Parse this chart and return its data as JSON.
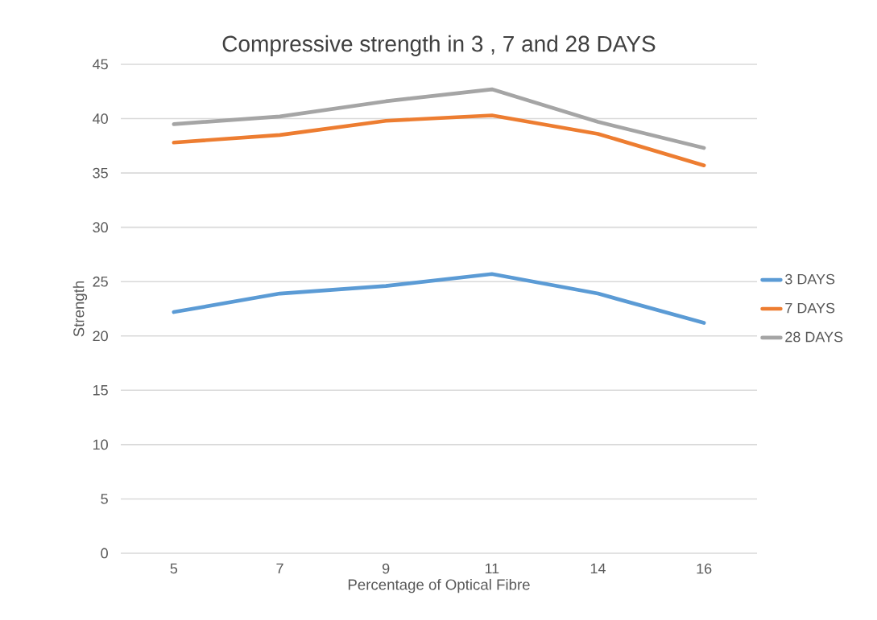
{
  "chart_data": {
    "type": "line",
    "title": "Compressive strength in 3 , 7 and 28 DAYS",
    "xlabel": "Percentage of Optical Fibre",
    "ylabel": "Strength",
    "categories": [
      "5",
      "7",
      "9",
      "11",
      "14",
      "16"
    ],
    "series": [
      {
        "name": "3 DAYS",
        "color": "#5b9bd5",
        "values": [
          22.2,
          23.9,
          24.6,
          25.7,
          23.9,
          21.2
        ]
      },
      {
        "name": "7 DAYS",
        "color": "#ed7d31",
        "values": [
          37.8,
          38.5,
          39.8,
          40.3,
          38.6,
          35.7
        ]
      },
      {
        "name": "28 DAYS",
        "color": "#a5a5a5",
        "values": [
          39.5,
          40.2,
          41.6,
          42.7,
          39.7,
          37.3
        ]
      }
    ],
    "ylim": [
      0,
      45
    ],
    "yticks": [
      0,
      5,
      10,
      15,
      20,
      25,
      30,
      35,
      40,
      45
    ],
    "grid": "y",
    "legend": "right",
    "marker": "none",
    "line_style": "solid"
  }
}
